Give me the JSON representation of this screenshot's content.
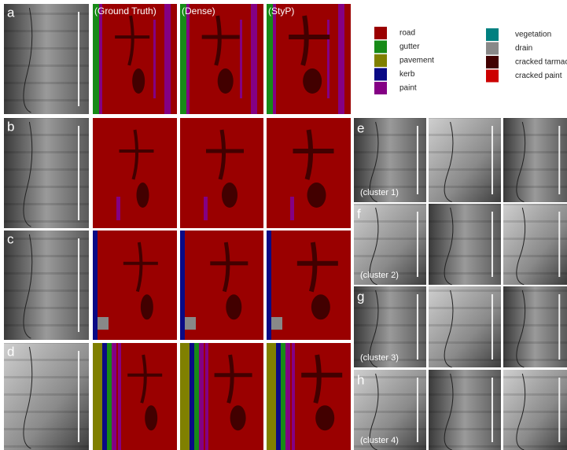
{
  "panels": [
    {
      "label": "a"
    },
    {
      "label": "b"
    },
    {
      "label": "c"
    },
    {
      "label": "d"
    }
  ],
  "columns": [
    "(Ground Truth)",
    "(Dense)",
    "(StyP)"
  ],
  "legend": [
    {
      "label": "road",
      "color": "#9a0000"
    },
    {
      "label": "gutter",
      "color": "#178a17"
    },
    {
      "label": "pavement",
      "color": "#808000"
    },
    {
      "label": "kerb",
      "color": "#0a0a85"
    },
    {
      "label": "paint",
      "color": "#840084"
    },
    {
      "label": "vegetation",
      "color": "#008080"
    },
    {
      "label": "drain",
      "color": "#888888"
    },
    {
      "label": "cracked tarmac",
      "color": "#420000"
    },
    {
      "label": "cracked paint",
      "color": "#cc0000"
    }
  ],
  "clusters": [
    {
      "label": "e",
      "caption": "(cluster 1)"
    },
    {
      "label": "f",
      "caption": "(cluster 2)"
    },
    {
      "label": "g",
      "caption": "(cluster 3)"
    },
    {
      "label": "h",
      "caption": "(cluster 4)"
    }
  ]
}
